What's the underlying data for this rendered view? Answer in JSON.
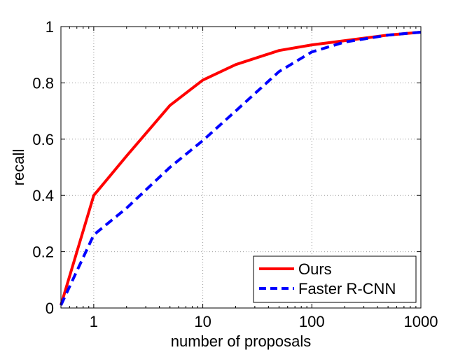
{
  "chart_data": {
    "type": "line",
    "title": "",
    "xlabel": "number of proposals",
    "ylabel": "recall",
    "xscale": "log",
    "xlim": [
      0.5,
      1000
    ],
    "ylim": [
      0,
      1
    ],
    "xticks": [
      1,
      10,
      100,
      1000
    ],
    "xtick_labels": [
      "1",
      "10",
      "100",
      "1000"
    ],
    "yticks": [
      0,
      0.2,
      0.4,
      0.6,
      0.8,
      1
    ],
    "ytick_labels": [
      "0",
      "0.2",
      "0.4",
      "0.6",
      "0.8",
      "1"
    ],
    "grid": true,
    "legend_position": "bottom-right",
    "series": [
      {
        "name": "Ours",
        "color": "#ff0000",
        "style": "solid",
        "x": [
          0.5,
          1,
          2,
          5,
          10,
          20,
          50,
          100,
          200,
          500,
          1000
        ],
        "y": [
          0.01,
          0.4,
          0.54,
          0.72,
          0.81,
          0.865,
          0.915,
          0.935,
          0.95,
          0.97,
          0.98
        ]
      },
      {
        "name": "Faster R-CNN",
        "color": "#0000ff",
        "style": "dashed",
        "x": [
          0.5,
          1,
          2,
          5,
          10,
          20,
          50,
          100,
          200,
          500,
          1000
        ],
        "y": [
          0.01,
          0.26,
          0.355,
          0.5,
          0.595,
          0.7,
          0.84,
          0.91,
          0.945,
          0.97,
          0.98
        ]
      }
    ]
  }
}
